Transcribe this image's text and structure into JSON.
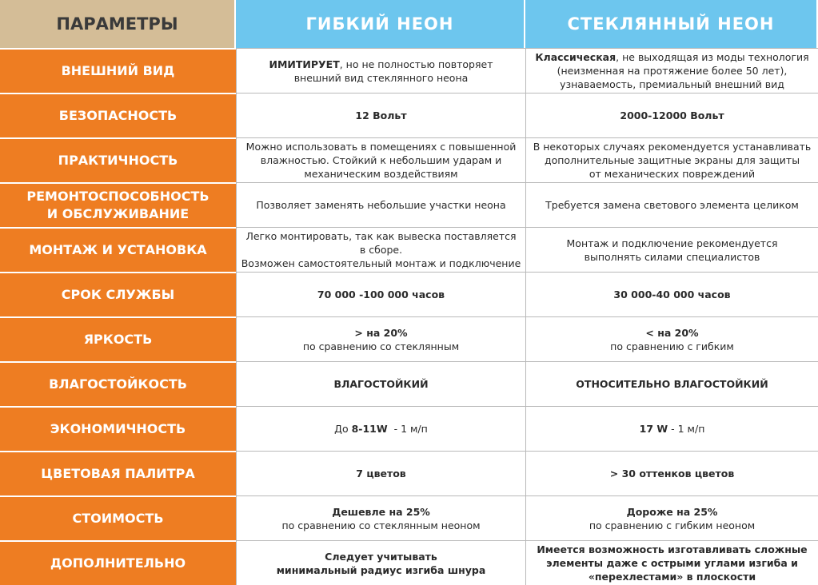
{
  "header": [
    "ПАРАМЕТРЫ",
    "ГИБКИЙ НЕОН",
    "СТЕКЛЯННЫЙ НЕОН"
  ],
  "rows": [
    {
      "param": [
        "ВНЕШНИЙ ВИД"
      ],
      "flexible": [
        [
          {
            "bold": "ИМИТИРУЕТ"
          },
          ", но не полностью повторяет"
        ],
        [
          "внешний вид стеклянного неона"
        ]
      ],
      "glass": [
        [
          {
            "bold": "Классическая"
          },
          ", не выходящая из моды технология"
        ],
        [
          "(неизменная на протяжение более 50 лет),"
        ],
        [
          "узнаваемость, премиальный внешний вид"
        ]
      ]
    },
    {
      "param": [
        "БЕЗОПАСНОСТЬ"
      ],
      "flexible": [
        [
          {
            "bold": "12 Вольт"
          }
        ]
      ],
      "glass": [
        [
          {
            "bold": "2000-12000 Вольт"
          }
        ]
      ]
    },
    {
      "param": [
        "ПРАКТИЧНОСТЬ"
      ],
      "flexible": [
        [
          "Можно использовать в помещениях с повышенной"
        ],
        [
          "влажностью. Стойкий к небольшим ударам и"
        ],
        [
          "механическим воздействиям"
        ]
      ],
      "glass": [
        [
          "В некоторых случаях рекомендуется устанавливать"
        ],
        [
          "дополнительные защитные экраны для защиты"
        ],
        [
          "от механических повреждений"
        ]
      ]
    },
    {
      "param": [
        "РЕМОНТОСПОСОБНОСТЬ",
        "И ОБСЛУЖИВАНИЕ"
      ],
      "flexible": [
        [
          "Позволяет заменять небольшие участки неона"
        ]
      ],
      "glass": [
        [
          "Требуется замена светового элемента целиком"
        ]
      ]
    },
    {
      "param": [
        "МОНТАЖ И УСТАНОВКА"
      ],
      "flexible": [
        [
          "Легко монтировать, так как вывеска поставляется"
        ],
        [
          "в сборе."
        ],
        [
          "Возможен самостоятельный монтаж и подключение"
        ]
      ],
      "glass": [
        [
          "Монтаж и подключение рекомендуется"
        ],
        [
          "выполнять силами специалистов"
        ]
      ]
    },
    {
      "param": [
        "СРОК СЛУЖБЫ"
      ],
      "flexible": [
        [
          {
            "bold": "70 000 -100 000 часов"
          }
        ]
      ],
      "glass": [
        [
          {
            "bold": "30 000-40 000 часов"
          }
        ]
      ]
    },
    {
      "param": [
        "ЯРКОСТЬ"
      ],
      "flexible": [
        [
          {
            "bold": "> на 20%"
          }
        ],
        [
          "по сравнению со стеклянным"
        ]
      ],
      "glass": [
        [
          {
            "bold": "< на 20%"
          }
        ],
        [
          "по сравнению с гибким"
        ]
      ]
    },
    {
      "param": [
        "ВЛАГОСТОЙКОСТЬ"
      ],
      "flexible": [
        [
          {
            "bold": "ВЛАГОСТОЙКИЙ"
          }
        ]
      ],
      "glass": [
        [
          {
            "bold": "ОТНОСИТЕЛЬНО ВЛАГОСТОЙКИЙ"
          }
        ]
      ]
    },
    {
      "param": [
        "ЭКОНОМИЧНОСТЬ"
      ],
      "flexible": [
        [
          "До ",
          {
            "bold": "8-11W"
          },
          "  - 1 м/п"
        ]
      ],
      "glass": [
        [
          {
            "bold": "17 W"
          },
          " - 1 м/п"
        ]
      ]
    },
    {
      "param": [
        "ЦВЕТОВАЯ ПАЛИТРА"
      ],
      "flexible": [
        [
          {
            "bold": "7 цветов"
          }
        ]
      ],
      "glass": [
        [
          {
            "bold": "> 30 оттенков цветов"
          }
        ]
      ]
    },
    {
      "param": [
        "СТОИМОСТЬ"
      ],
      "flexible": [
        [
          {
            "bold": "Дешевле на 25%"
          }
        ],
        [
          "по сравнению со стеклянным неоном"
        ]
      ],
      "glass": [
        [
          {
            "bold": "Дороже на 25%"
          }
        ],
        [
          "по сравнению с гибким неоном"
        ]
      ]
    },
    {
      "param": [
        "ДОПОЛНИТЕЛЬНО"
      ],
      "flexible": [
        [
          {
            "bold": "Следует учитывать"
          }
        ],
        [
          {
            "bold": "минимальный радиус изгиба шнура"
          }
        ]
      ],
      "glass": [
        [
          {
            "bold": "Имеется возможность изготавливать сложные"
          }
        ],
        [
          {
            "bold": "элементы даже с острыми углами изгиба и"
          }
        ],
        [
          {
            "bold": "«перехлестами» в плоскости"
          }
        ]
      ]
    }
  ]
}
